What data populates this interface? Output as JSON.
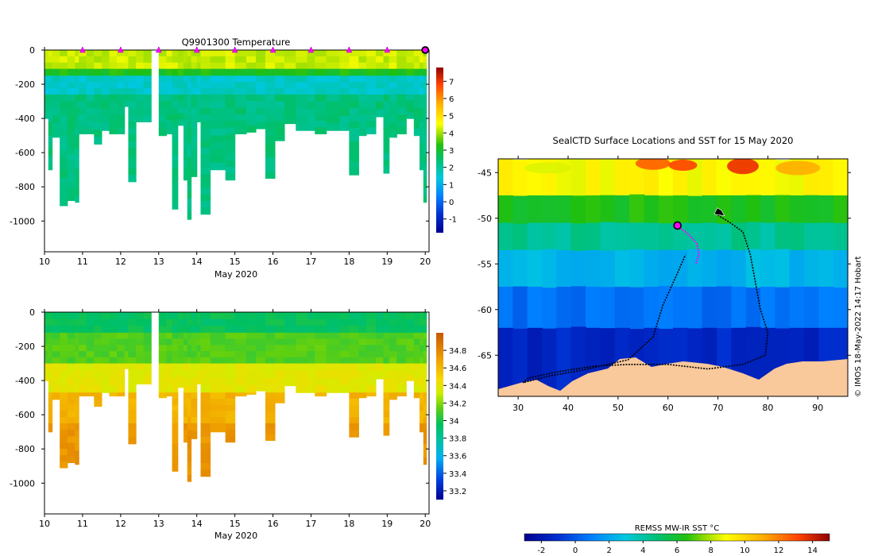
{
  "chart_data": [
    {
      "type": "heatmap",
      "panel": "temperature-section",
      "title": "Q9901300  Temperature",
      "xlabel": "May 2020",
      "ylabel": "",
      "xlim": [
        10,
        20.1
      ],
      "ylim": [
        -1180,
        0
      ],
      "xticks": [
        "10",
        "11",
        "12",
        "13",
        "14",
        "15",
        "16",
        "17",
        "18",
        "19",
        "20"
      ],
      "yticks": [
        "0",
        "-200",
        "-400",
        "-600",
        "-800",
        "-1000"
      ],
      "colorbar": {
        "min": -1.8,
        "max": 7.8,
        "ticks": [
          "-1",
          "0",
          "1",
          "2",
          "3",
          "4",
          "5",
          "6",
          "7"
        ]
      },
      "surface_markers_day": [
        11,
        12,
        13,
        14,
        15,
        16,
        17,
        18,
        19
      ],
      "current_position_day": 20,
      "layers": [
        {
          "from_depth": 0,
          "to_depth": 110,
          "value": 4.2
        },
        {
          "from_depth": 110,
          "to_depth": 150,
          "value": 3.2
        },
        {
          "from_depth": 150,
          "to_depth": 260,
          "value": 1.6
        },
        {
          "from_depth": 260,
          "to_depth": 1000,
          "value": 2.3
        }
      ],
      "profile_max_depth": [
        {
          "day": 10.0,
          "depth": 400
        },
        {
          "day": 10.1,
          "depth": 700
        },
        {
          "day": 10.2,
          "depth": 510
        },
        {
          "day": 10.4,
          "depth": 910
        },
        {
          "day": 10.6,
          "depth": 880
        },
        {
          "day": 10.8,
          "depth": 890
        },
        {
          "day": 10.9,
          "depth": 490
        },
        {
          "day": 11.1,
          "depth": 490
        },
        {
          "day": 11.3,
          "depth": 550
        },
        {
          "day": 11.5,
          "depth": 470
        },
        {
          "day": 11.7,
          "depth": 490
        },
        {
          "day": 11.9,
          "depth": 490
        },
        {
          "day": 12.1,
          "depth": 330
        },
        {
          "day": 12.2,
          "depth": 770
        },
        {
          "day": 12.4,
          "depth": 420
        },
        {
          "day": 12.6,
          "depth": 420
        },
        {
          "day": 12.8,
          "depth": 0
        },
        {
          "day": 13.0,
          "depth": 500
        },
        {
          "day": 13.2,
          "depth": 490
        },
        {
          "day": 13.35,
          "depth": 930
        },
        {
          "day": 13.5,
          "depth": 440
        },
        {
          "day": 13.65,
          "depth": 760
        },
        {
          "day": 13.75,
          "depth": 990
        },
        {
          "day": 13.85,
          "depth": 740
        },
        {
          "day": 14.0,
          "depth": 420
        },
        {
          "day": 14.1,
          "depth": 960
        },
        {
          "day": 14.35,
          "depth": 700
        },
        {
          "day": 14.75,
          "depth": 760
        },
        {
          "day": 15.0,
          "depth": 490
        },
        {
          "day": 15.3,
          "depth": 480
        },
        {
          "day": 15.55,
          "depth": 460
        },
        {
          "day": 15.8,
          "depth": 750
        },
        {
          "day": 16.05,
          "depth": 530
        },
        {
          "day": 16.3,
          "depth": 430
        },
        {
          "day": 16.6,
          "depth": 470
        },
        {
          "day": 16.9,
          "depth": 470
        },
        {
          "day": 17.1,
          "depth": 490
        },
        {
          "day": 17.4,
          "depth": 470
        },
        {
          "day": 17.75,
          "depth": 470
        },
        {
          "day": 18.0,
          "depth": 730
        },
        {
          "day": 18.25,
          "depth": 500
        },
        {
          "day": 18.45,
          "depth": 490
        },
        {
          "day": 18.7,
          "depth": 390
        },
        {
          "day": 18.9,
          "depth": 720
        },
        {
          "day": 19.05,
          "depth": 510
        },
        {
          "day": 19.25,
          "depth": 490
        },
        {
          "day": 19.5,
          "depth": 400
        },
        {
          "day": 19.7,
          "depth": 500
        },
        {
          "day": 19.85,
          "depth": 700
        },
        {
          "day": 19.95,
          "depth": 890
        }
      ]
    },
    {
      "type": "heatmap",
      "panel": "salinity-section",
      "title": "",
      "xlabel": "May 2020",
      "ylabel": "",
      "xlim": [
        10,
        20.1
      ],
      "ylim": [
        -1180,
        0
      ],
      "xticks": [
        "10",
        "11",
        "12",
        "13",
        "14",
        "15",
        "16",
        "17",
        "18",
        "19",
        "20"
      ],
      "yticks": [
        "0",
        "-200",
        "-400",
        "-600",
        "-800",
        "-1000"
      ],
      "colorbar": {
        "min": 33.1,
        "max": 35.0,
        "ticks": [
          "33.2",
          "33.4",
          "33.6",
          "33.8",
          "34",
          "34.2",
          "34.4",
          "34.6",
          "34.8"
        ]
      },
      "layers": [
        {
          "from_depth": 0,
          "to_depth": 120,
          "value": 33.95
        },
        {
          "from_depth": 120,
          "to_depth": 300,
          "value": 34.1
        },
        {
          "from_depth": 300,
          "to_depth": 470,
          "value": 34.35
        },
        {
          "from_depth": 470,
          "to_depth": 650,
          "value": 34.58
        },
        {
          "from_depth": 650,
          "to_depth": 1000,
          "value": 34.68
        }
      ]
    },
    {
      "type": "heatmap",
      "panel": "sst-map",
      "title": "SealCTD Surface Locations and SST for 15 May 2020",
      "xlabel": "",
      "ylabel": "",
      "xlim": [
        26,
        96
      ],
      "ylim": [
        -69.5,
        -43.5
      ],
      "xticks": [
        "30",
        "40",
        "50",
        "60",
        "70",
        "80",
        "90"
      ],
      "yticks": [
        "-45",
        "-50",
        "-55",
        "-60",
        "-65"
      ],
      "colorbar": {
        "label": "REMSS MW-IR SST °C",
        "min": -3,
        "max": 15,
        "ticks": [
          "-2",
          "0",
          "2",
          "4",
          "6",
          "8",
          "10",
          "12",
          "14"
        ]
      },
      "sst_bands": [
        {
          "lat_top": -43.5,
          "lat_bottom": -47.5,
          "sst": 9.0
        },
        {
          "lat_top": -47.5,
          "lat_bottom": -50.5,
          "sst": 6.3
        },
        {
          "lat_top": -50.5,
          "lat_bottom": -53.5,
          "sst": 4.3
        },
        {
          "lat_top": -53.5,
          "lat_bottom": -57.5,
          "sst": 2.4
        },
        {
          "lat_top": -57.5,
          "lat_bottom": -62.0,
          "sst": 0.6
        },
        {
          "lat_top": -62.0,
          "lat_bottom": -69.5,
          "sst": -1.4
        }
      ],
      "track_lonlat": [
        [
          69.5,
          -49.5
        ],
        [
          72.5,
          -50.5
        ],
        [
          75,
          -51.5
        ],
        [
          76.5,
          -54
        ],
        [
          77.5,
          -57
        ],
        [
          78.5,
          -60
        ],
        [
          80,
          -62.5
        ],
        [
          79.5,
          -65
        ],
        [
          75,
          -66
        ],
        [
          68,
          -66.5
        ],
        [
          60,
          -66
        ],
        [
          52,
          -66
        ],
        [
          45,
          -66.2
        ],
        [
          38,
          -66.8
        ],
        [
          32,
          -67.5
        ],
        [
          31,
          -68
        ],
        [
          36,
          -67.3
        ],
        [
          44,
          -66.5
        ],
        [
          52,
          -65.5
        ],
        [
          57,
          -63
        ],
        [
          59,
          -59.5
        ],
        [
          61.5,
          -56.5
        ],
        [
          63.5,
          -54
        ]
      ],
      "recent_track_lonlat": [
        [
          62,
          -50.9
        ],
        [
          64,
          -51.7
        ],
        [
          65.8,
          -52.8
        ],
        [
          66.2,
          -53.9
        ],
        [
          65.6,
          -55
        ]
      ],
      "current_position": [
        61.9,
        -50.8
      ],
      "colony_position": [
        70.2,
        -49.3
      ]
    }
  ],
  "copyright": "© IMOS 18-May-2022 14:17 Hobart"
}
